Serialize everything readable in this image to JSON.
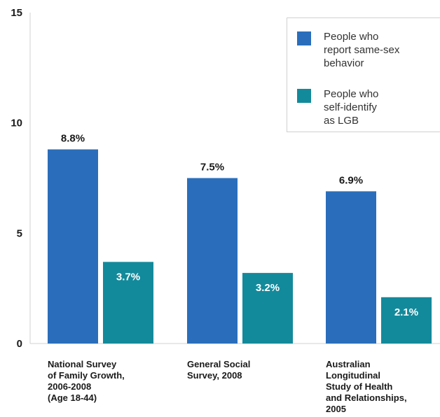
{
  "chart_data": {
    "type": "bar",
    "title": "",
    "xlabel": "",
    "ylabel": "",
    "ylim": [
      0,
      15
    ],
    "yticks": [
      "0",
      "5",
      "10",
      "15"
    ],
    "grid": false,
    "legend_position": "top-right",
    "categories": [
      [
        "National Survey",
        "of Family Growth,",
        "2006-2008",
        "(Age 18-44)"
      ],
      [
        "General Social",
        "Survey, 2008"
      ],
      [
        "Australian",
        "Longitudinal",
        "Study of Health",
        "and Relationships,",
        "2005"
      ]
    ],
    "series": [
      {
        "name": [
          "People who",
          "report same-sex",
          "behavior"
        ],
        "color": "#2a6ebb",
        "values": [
          8.8,
          7.5,
          6.9
        ],
        "labels": [
          "8.8%",
          "7.5%",
          "6.9%"
        ],
        "label_position": "above"
      },
      {
        "name": [
          "People who",
          "self-identify",
          "as LGB"
        ],
        "color": "#138a9b",
        "values": [
          3.7,
          3.2,
          2.1
        ],
        "labels": [
          "3.7%",
          "3.2%",
          "2.1%"
        ],
        "label_position": "inside"
      }
    ]
  }
}
